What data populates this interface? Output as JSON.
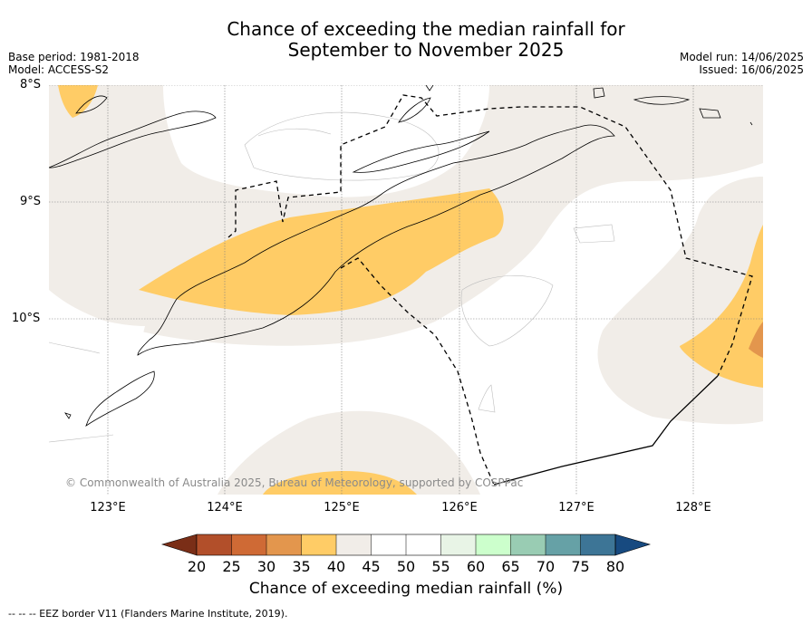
{
  "title_line1": "Chance of exceeding the median rainfall for",
  "title_line2": "September to November 2025",
  "base_period": "Base period: 1981-2018",
  "model": "Model: ACCESS-S2",
  "model_run": "Model run: 14/06/2025",
  "issued": "Issued: 16/06/2025",
  "lat_labels": [
    "8°S",
    "9°S",
    "10°S"
  ],
  "lon_labels": [
    "123°E",
    "124°E",
    "125°E",
    "126°E",
    "127°E",
    "128°E"
  ],
  "copyright": "© Commonwealth of Australia 2025, Bureau of Meteorology, supported by COSPPac",
  "colorbar": {
    "title": "Chance of exceeding median rainfall (%)",
    "ticks": [
      "20",
      "25",
      "30",
      "35",
      "40",
      "45",
      "50",
      "55",
      "60",
      "65",
      "70",
      "75",
      "80"
    ],
    "colors": [
      "#7a2e17",
      "#b24f2a",
      "#cf6a35",
      "#e3964d",
      "#ffcc66",
      "#f1ede8",
      "#ffffff",
      "#ffffff",
      "#e8f4e6",
      "#ccffcc",
      "#99ccb3",
      "#66a1a6",
      "#3d7596",
      "#174a80"
    ]
  },
  "footnote": "--  --  -- EEZ border V11 (Flanders Marine Institute, 2019)."
}
